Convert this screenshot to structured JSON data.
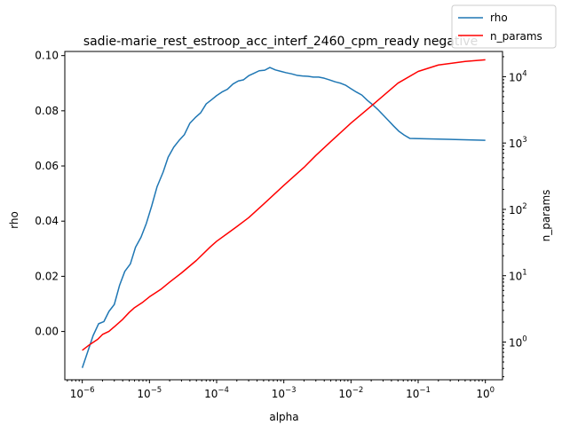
{
  "chart_data": {
    "type": "line",
    "title": "sadie-marie_rest_estroop_acc_interf_2460_cpm_ready negative",
    "xlabel": "alpha",
    "ylabel": "rho",
    "y2label": "n_params",
    "x_scale": "log",
    "y2_scale": "log",
    "xlim": [
      5.5e-07,
      1.8
    ],
    "ylim": [
      -0.0175,
      0.1015
    ],
    "y2lim": [
      0.27,
      24000
    ],
    "grid": false,
    "legend_position": "top-right",
    "x_ticks": [
      {
        "value": 1e-06,
        "label": "10",
        "exp": "−6"
      },
      {
        "value": 1e-05,
        "label": "10",
        "exp": "−5"
      },
      {
        "value": 0.0001,
        "label": "10",
        "exp": "−4"
      },
      {
        "value": 0.001,
        "label": "10",
        "exp": "−3"
      },
      {
        "value": 0.01,
        "label": "10",
        "exp": "−2"
      },
      {
        "value": 0.1,
        "label": "10",
        "exp": "−1"
      },
      {
        "value": 1,
        "label": "10",
        "exp": "0"
      }
    ],
    "y_ticks": [
      {
        "value": 0.0,
        "label": "0.00"
      },
      {
        "value": 0.02,
        "label": "0.02"
      },
      {
        "value": 0.04,
        "label": "0.04"
      },
      {
        "value": 0.06,
        "label": "0.06"
      },
      {
        "value": 0.08,
        "label": "0.08"
      },
      {
        "value": 0.1,
        "label": "0.10"
      }
    ],
    "y2_ticks": [
      {
        "value": 1,
        "label": "10",
        "exp": "0"
      },
      {
        "value": 10,
        "label": "10",
        "exp": "1"
      },
      {
        "value": 100,
        "label": "10",
        "exp": "2"
      },
      {
        "value": 1000,
        "label": "10",
        "exp": "3"
      },
      {
        "value": 10000,
        "label": "10",
        "exp": "4"
      }
    ],
    "series": [
      {
        "name": "rho",
        "axis": "left",
        "color": "#1f77b4",
        "points": [
          [
            1e-06,
            -0.0132
          ],
          [
            1.2e-06,
            -0.0075
          ],
          [
            1.45e-06,
            -0.0015
          ],
          [
            1.75e-06,
            0.0028
          ],
          [
            2.1e-06,
            0.0036
          ],
          [
            2.5e-06,
            0.0073
          ],
          [
            3e-06,
            0.0098
          ],
          [
            3.6e-06,
            0.0168
          ],
          [
            4.3e-06,
            0.0218
          ],
          [
            5.2e-06,
            0.0245
          ],
          [
            6.2e-06,
            0.0305
          ],
          [
            7.5e-06,
            0.0342
          ],
          [
            9e-06,
            0.0392
          ],
          [
            1.08e-05,
            0.0455
          ],
          [
            1.3e-05,
            0.0525
          ],
          [
            1.6e-05,
            0.0578
          ],
          [
            1.9e-05,
            0.0632
          ],
          [
            2.3e-05,
            0.0668
          ],
          [
            2.75e-05,
            0.0692
          ],
          [
            3.3e-05,
            0.0713
          ],
          [
            4e-05,
            0.0755
          ],
          [
            4.8e-05,
            0.0775
          ],
          [
            5.8e-05,
            0.0793
          ],
          [
            7e-05,
            0.0825
          ],
          [
            8.4e-05,
            0.084
          ],
          [
            0.0001,
            0.0855
          ],
          [
            0.00012,
            0.0868
          ],
          [
            0.000145,
            0.0878
          ],
          [
            0.000175,
            0.0897
          ],
          [
            0.00021,
            0.0908
          ],
          [
            0.00025,
            0.0912
          ],
          [
            0.0003,
            0.0927
          ],
          [
            0.00036,
            0.0936
          ],
          [
            0.00043,
            0.0945
          ],
          [
            0.00052,
            0.0947
          ],
          [
            0.00062,
            0.0957
          ],
          [
            0.00075,
            0.0948
          ],
          [
            0.0009,
            0.0943
          ],
          [
            0.00108,
            0.0938
          ],
          [
            0.0013,
            0.0934
          ],
          [
            0.0016,
            0.0928
          ],
          [
            0.0019,
            0.0926
          ],
          [
            0.0023,
            0.0925
          ],
          [
            0.00275,
            0.0922
          ],
          [
            0.0033,
            0.0922
          ],
          [
            0.004,
            0.0918
          ],
          [
            0.0048,
            0.0912
          ],
          [
            0.0058,
            0.0905
          ],
          [
            0.007,
            0.09
          ],
          [
            0.0084,
            0.0892
          ],
          [
            0.01,
            0.088
          ],
          [
            0.012,
            0.0868
          ],
          [
            0.0145,
            0.0857
          ],
          [
            0.0175,
            0.0838
          ],
          [
            0.021,
            0.0822
          ],
          [
            0.025,
            0.0805
          ],
          [
            0.03,
            0.0785
          ],
          [
            0.036,
            0.0765
          ],
          [
            0.043,
            0.0745
          ],
          [
            0.052,
            0.0725
          ],
          [
            0.062,
            0.0712
          ],
          [
            0.075,
            0.07
          ],
          [
            1,
            0.0693
          ]
        ]
      },
      {
        "name": "n_params",
        "axis": "right",
        "color": "#ff0000",
        "points": [
          [
            1e-06,
            0.75
          ],
          [
            1.3e-06,
            0.92
          ],
          [
            1.7e-06,
            1.1
          ],
          [
            2e-06,
            1.3
          ],
          [
            2.5e-06,
            1.45
          ],
          [
            3e-06,
            1.7
          ],
          [
            4e-06,
            2.2
          ],
          [
            5e-06,
            2.8
          ],
          [
            6e-06,
            3.3
          ],
          [
            8e-06,
            4.0
          ],
          [
            1e-05,
            4.8
          ],
          [
            1.5e-05,
            6.3
          ],
          [
            2e-05,
            8.0
          ],
          [
            3e-05,
            11
          ],
          [
            5e-05,
            17
          ],
          [
            8e-05,
            27
          ],
          [
            0.0001,
            33
          ],
          [
            0.0002,
            55
          ],
          [
            0.0003,
            75
          ],
          [
            0.0005,
            120
          ],
          [
            0.001,
            230
          ],
          [
            0.002,
            430
          ],
          [
            0.003,
            650
          ],
          [
            0.005,
            1050
          ],
          [
            0.01,
            2000
          ],
          [
            0.02,
            3600
          ],
          [
            0.05,
            8000
          ],
          [
            0.1,
            12000
          ],
          [
            0.2,
            15000
          ],
          [
            0.5,
            17000
          ],
          [
            1,
            18000
          ]
        ]
      }
    ]
  }
}
